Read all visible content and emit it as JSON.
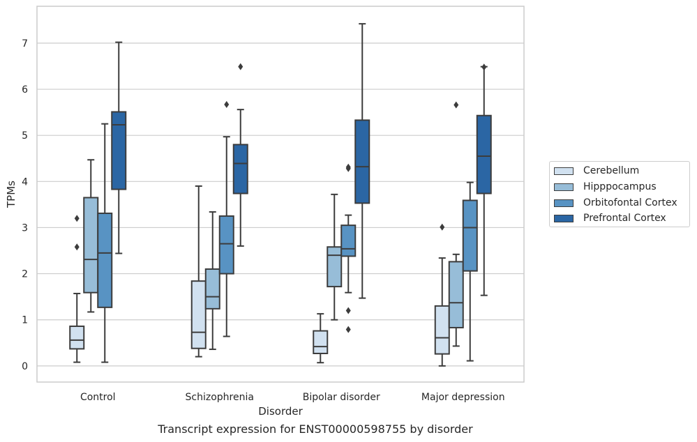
{
  "caption": "Transcript expression for ENST00000598755 by disorder",
  "chart_data": {
    "type": "boxplot",
    "xlabel": "Disorder",
    "ylabel": "TPMs",
    "ylim": [
      -0.35,
      7.8
    ],
    "yticks": [
      0,
      1,
      2,
      3,
      4,
      5,
      6,
      7
    ],
    "grid": "horizontal",
    "legend_position": "right",
    "categories": [
      "Control",
      "Schizophrenia",
      "Bipolar disorder",
      "Major depression"
    ],
    "series": [
      {
        "name": "Cerebellum",
        "color": "#d1e1f0",
        "boxes": [
          {
            "whisker_low": 0.08,
            "q1": 0.37,
            "median": 0.56,
            "q3": 0.86,
            "whisker_high": 1.57,
            "outliers": [
              3.2,
              2.58
            ]
          },
          {
            "whisker_low": 0.2,
            "q1": 0.38,
            "median": 0.73,
            "q3": 1.84,
            "whisker_high": 3.9,
            "outliers": []
          },
          {
            "whisker_low": 0.07,
            "q1": 0.27,
            "median": 0.42,
            "q3": 0.76,
            "whisker_high": 1.13,
            "outliers": []
          },
          {
            "whisker_low": 0.0,
            "q1": 0.26,
            "median": 0.61,
            "q3": 1.3,
            "whisker_high": 2.34,
            "outliers": [
              3.01
            ]
          }
        ]
      },
      {
        "name": "Hipppocampus",
        "color": "#97bdd8",
        "boxes": [
          {
            "whisker_low": 1.17,
            "q1": 1.59,
            "median": 2.31,
            "q3": 3.65,
            "whisker_high": 4.47,
            "outliers": []
          },
          {
            "whisker_low": 0.36,
            "q1": 1.24,
            "median": 1.5,
            "q3": 2.1,
            "whisker_high": 3.34,
            "outliers": []
          },
          {
            "whisker_low": 1.0,
            "q1": 1.72,
            "median": 2.4,
            "q3": 2.58,
            "whisker_high": 3.72,
            "outliers": []
          },
          {
            "whisker_low": 0.43,
            "q1": 0.83,
            "median": 1.37,
            "q3": 2.26,
            "whisker_high": 2.42,
            "outliers": [
              5.66
            ]
          }
        ]
      },
      {
        "name": "Orbitofontal Cortex",
        "color": "#5893c3",
        "boxes": [
          {
            "whisker_low": 0.08,
            "q1": 1.27,
            "median": 2.45,
            "q3": 3.31,
            "whisker_high": 5.25,
            "outliers": []
          },
          {
            "whisker_low": 0.64,
            "q1": 2.0,
            "median": 2.65,
            "q3": 3.25,
            "whisker_high": 4.97,
            "outliers": [
              5.67
            ]
          },
          {
            "whisker_low": 1.59,
            "q1": 2.38,
            "median": 2.54,
            "q3": 3.05,
            "whisker_high": 3.27,
            "outliers": [
              1.2,
              0.79,
              4.28,
              4.31
            ]
          },
          {
            "whisker_low": 0.11,
            "q1": 2.06,
            "median": 3.0,
            "q3": 3.59,
            "whisker_high": 3.98,
            "outliers": []
          }
        ]
      },
      {
        "name": "Prefrontal Cortex",
        "color": "#2b66a4",
        "boxes": [
          {
            "whisker_low": 2.44,
            "q1": 3.83,
            "median": 5.23,
            "q3": 5.51,
            "whisker_high": 7.02,
            "outliers": []
          },
          {
            "whisker_low": 2.6,
            "q1": 3.74,
            "median": 4.39,
            "q3": 4.8,
            "whisker_high": 5.56,
            "outliers": [
              6.49
            ]
          },
          {
            "whisker_low": 1.47,
            "q1": 3.53,
            "median": 4.32,
            "q3": 5.33,
            "whisker_high": 7.42,
            "outliers": []
          },
          {
            "whisker_low": 1.53,
            "q1": 3.74,
            "median": 4.55,
            "q3": 5.43,
            "whisker_high": 6.49,
            "outliers": [
              6.48
            ]
          }
        ]
      }
    ]
  }
}
